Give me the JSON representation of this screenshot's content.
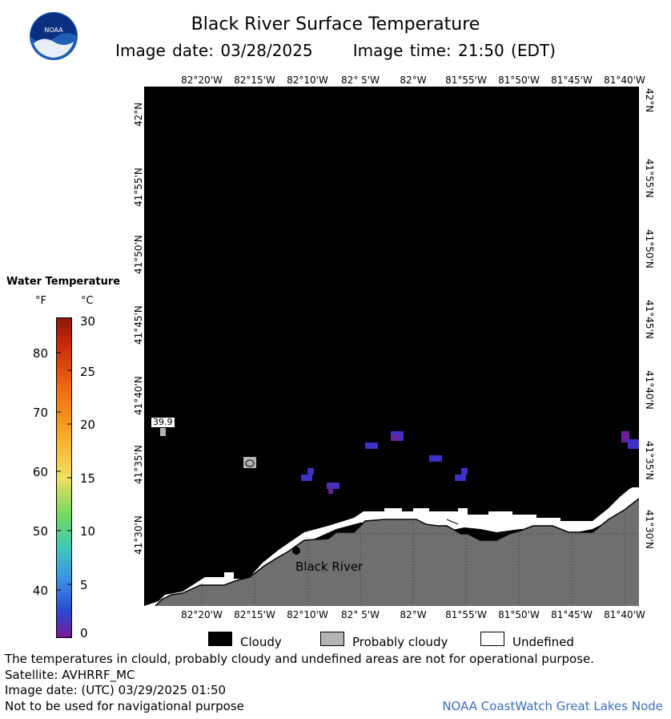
{
  "header": {
    "title": "Black River Surface Temperature",
    "image_date_label": "Image date:",
    "image_date": "03/28/2025",
    "image_time_label": "Image time:",
    "image_time": "21:50 (EDT)",
    "logo_text": "NOAA"
  },
  "map": {
    "longitude_labels": [
      "82°20'W",
      "82°15'W",
      "82°10'W",
      "82° 5'W",
      "82°W",
      "81°55'W",
      "81°50'W",
      "81°45'W",
      "81°40'W"
    ],
    "latitude_labels": [
      "42°N",
      "41°55'N",
      "41°50'N",
      "41°45'N",
      "41°40'N",
      "41°35'N",
      "41°30'N"
    ],
    "place_label": "Black River",
    "temperature_flag": "39.9",
    "colors": {
      "water_cloudy": "#000000",
      "land": "#6f6f6f",
      "undefined": "#ffffff",
      "probably_cloudy": "#b4b4b4",
      "warm_pixel": "#3b30c8"
    }
  },
  "legend": {
    "title": "Water Temperature",
    "unit_f": "°F",
    "unit_c": "°C",
    "fahrenheit_ticks": [
      "80",
      "70",
      "60",
      "50",
      "40"
    ],
    "celsius_ticks": [
      "30",
      "25",
      "20",
      "15",
      "10",
      "5",
      "0"
    ],
    "scale_range_c": [
      0,
      30
    ]
  },
  "key": {
    "cloudy": "Cloudy",
    "probably_cloudy": "Probably cloudy",
    "undefined": "Undefined"
  },
  "footer": {
    "disclaimer": "The temperatures in clould, probably cloudy and undefined areas are not for operational purpose.",
    "satellite": "Satellite: AVHRRF_MC",
    "utc_date": "Image date: (UTC) 03/29/2025  01:50",
    "nav_warning": "Not to be used for navigational purpose",
    "credit": "NOAA CoastWatch Great Lakes Node"
  }
}
